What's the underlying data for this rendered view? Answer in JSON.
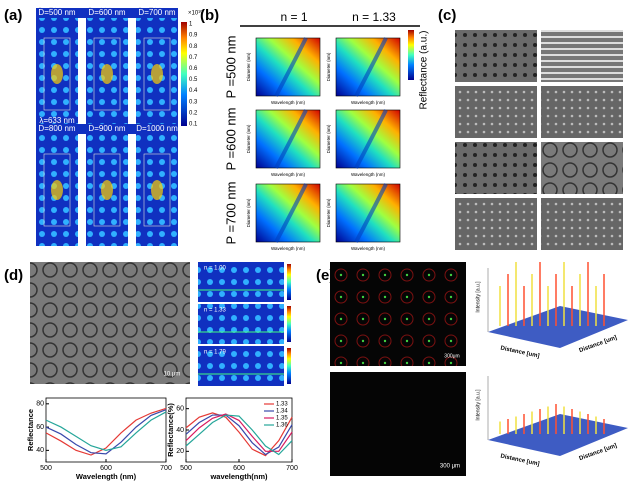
{
  "panels": {
    "a": {
      "label": "(a)",
      "top_labels": [
        "D=500 nm",
        "D=600 nm",
        "D=700 nm"
      ],
      "bottom_labels": [
        "D=800 nm",
        "D=900 nm",
        "D=1000 nm"
      ],
      "wavelength": "λ=633 nm",
      "colorbar_exponent": "×10¹⁰",
      "colorbar_ticks": [
        "1",
        "0.9",
        "0.8",
        "0.7",
        "0.6",
        "0.5",
        "0.4",
        "0.3",
        "0.2",
        "0.1"
      ]
    },
    "b": {
      "label": "(b)",
      "columns": [
        "n = 1",
        "n = 1.33"
      ],
      "rows": [
        "P =500 nm",
        "P =600 nm",
        "P =700 nm"
      ],
      "colorbar_label": "Reflectance (a.u.)",
      "x_label": "Wavelength (nm)",
      "y_label": "Diameter (nm)"
    },
    "c": {
      "label": "(c)"
    },
    "d": {
      "label": "(d)",
      "scale_bar": "10 μm",
      "field_labels": [
        "n = 1.00",
        "n = 1.33",
        "n = 1.79"
      ]
    },
    "e": {
      "label": "(e)",
      "scale_bars": [
        "300μm",
        "300 μm"
      ],
      "x_label": "Distance [um]",
      "z_label": "Intensity [a.u.]"
    }
  },
  "chart_data": [
    {
      "type": "line",
      "y_label": "Reflectance",
      "x_label": "Wavelength (nm)",
      "x": [
        500,
        525,
        550,
        575,
        600,
        625,
        650,
        675,
        700
      ],
      "series": [
        {
          "color": "#e53935",
          "values": [
            55,
            48,
            40,
            36,
            42,
            55,
            66,
            72,
            76
          ]
        },
        {
          "color": "#3949ab",
          "values": [
            60,
            54,
            45,
            38,
            37,
            47,
            60,
            70,
            75
          ]
        },
        {
          "color": "#26a69a",
          "values": [
            66,
            60,
            52,
            44,
            40,
            43,
            55,
            66,
            73
          ]
        }
      ],
      "xlim": [
        500,
        700
      ],
      "ylim": [
        30,
        85
      ],
      "xticks": [
        500,
        600,
        700
      ],
      "yticks": [
        40,
        60,
        80
      ]
    },
    {
      "type": "line",
      "y_label": "Reflectance(%)",
      "x_label": "wavelength(nm)",
      "x": [
        500,
        525,
        550,
        575,
        600,
        625,
        650,
        675,
        700
      ],
      "series": [
        {
          "name": "1.33",
          "color": "#e53935",
          "values": [
            42,
            52,
            56,
            52,
            38,
            22,
            16,
            30,
            52
          ]
        },
        {
          "name": "1.34",
          "color": "#3949ab",
          "values": [
            36,
            47,
            54,
            54,
            44,
            28,
            17,
            24,
            45
          ]
        },
        {
          "name": "1.35",
          "color": "#d81b60",
          "values": [
            30,
            42,
            51,
            55,
            49,
            34,
            20,
            20,
            38
          ]
        },
        {
          "name": "1.36",
          "color": "#26a69a",
          "values": [
            25,
            36,
            47,
            54,
            53,
            40,
            25,
            17,
            30
          ]
        }
      ],
      "xlim": [
        500,
        700
      ],
      "ylim": [
        10,
        70
      ],
      "xticks": [
        500,
        600,
        700
      ],
      "yticks": [
        20,
        40,
        60
      ]
    }
  ]
}
